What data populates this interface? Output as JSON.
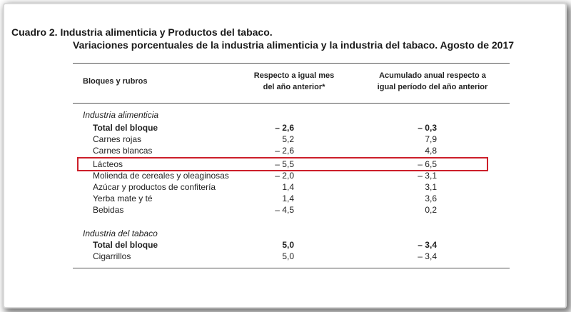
{
  "title_line1": "Cuadro 2. Industria alimenticia y Productos del tabaco.",
  "title_line2": "Variaciones porcentuales de la industria alimenticia y la industria del tabaco. Agosto de 2017",
  "headers": {
    "col0": "Bloques y rubros",
    "col1_line1": "Respecto a igual mes",
    "col1_line2": "del año anterior*",
    "col2_line1": "Acumulado anual respecto a",
    "col2_line2": "igual período del año anterior"
  },
  "section_food": {
    "title": "Industria alimenticia",
    "rows": [
      {
        "label": "Total del bloque",
        "v1": "– 2,6",
        "v2": "– 0,3"
      },
      {
        "label": "Carnes rojas",
        "v1": "5,2",
        "v2": "7,9"
      },
      {
        "label": "Carnes blancas",
        "v1": "– 2,6",
        "v2": "4,8"
      },
      {
        "label": "Lácteos",
        "v1": "– 5,5",
        "v2": "– 6,5"
      },
      {
        "label": "Molienda de cereales y oleaginosas",
        "v1": "– 2,0",
        "v2": "– 3,1"
      },
      {
        "label": "Azúcar y productos de confitería",
        "v1": "1,4",
        "v2": "3,1"
      },
      {
        "label": "Yerba mate y té",
        "v1": "1,4",
        "v2": "3,6"
      },
      {
        "label": "Bebidas",
        "v1": "– 4,5",
        "v2": "0,2"
      }
    ]
  },
  "section_tobacco": {
    "title": "Industria del tabaco",
    "rows": [
      {
        "label": "Total del bloque",
        "v1": "5,0",
        "v2": "– 3,4"
      },
      {
        "label": "Cigarrillos",
        "v1": "5,0",
        "v2": "– 3,4"
      }
    ]
  },
  "highlight_color": "#cc1f2a"
}
